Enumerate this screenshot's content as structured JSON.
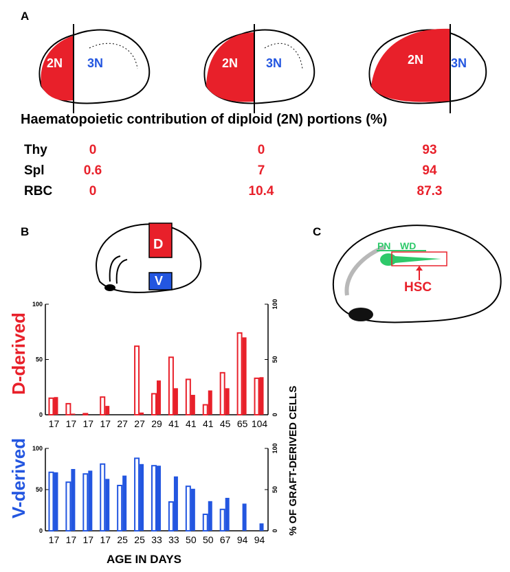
{
  "panel_a": {
    "letter": "A",
    "brains": [
      {
        "left": "2N",
        "right": "3N"
      },
      {
        "left": "2N",
        "right": "3N"
      },
      {
        "left": "2N",
        "right": "3N"
      }
    ],
    "title": "Haematopoietic contribution of diploid (2N) portions (%)",
    "rows": [
      {
        "label": "Thy",
        "values": [
          "0",
          "0",
          "93"
        ]
      },
      {
        "label": "Spl",
        "values": [
          "0.6",
          "7",
          "94"
        ]
      },
      {
        "label": "RBC",
        "values": [
          "0",
          "10.4",
          "87.3"
        ]
      }
    ]
  },
  "panel_b": {
    "letter": "B",
    "dorsal": "D",
    "ventral": "V"
  },
  "panel_c": {
    "letter": "C",
    "pn": "PN",
    "wd": "WD",
    "hsc": "HSC"
  },
  "colors": {
    "red": "#e8202a",
    "blue": "#2356e0",
    "green": "#2ec96a"
  },
  "chart_data": [
    {
      "type": "bar",
      "title": "D-derived",
      "ylabel_right": "% OF GRAFT-DERIVED CELLS",
      "ylim": [
        0,
        100
      ],
      "yticks": [
        "0",
        "50",
        "100"
      ],
      "categories": [
        "17",
        "17",
        "17",
        "17",
        "27",
        "27",
        "29",
        "41",
        "41",
        "41",
        "45",
        "65",
        "104"
      ],
      "series": [
        {
          "name": "open",
          "values": [
            15,
            10,
            1,
            16,
            0,
            62,
            19,
            52,
            32,
            9,
            38,
            74,
            33
          ]
        },
        {
          "name": "filled",
          "values": [
            16,
            1,
            0,
            8,
            0,
            2,
            31,
            24,
            18,
            22,
            24,
            70,
            34
          ]
        }
      ]
    },
    {
      "type": "bar",
      "title": "V-derived",
      "xlabel": "AGE IN DAYS",
      "ylim": [
        0,
        100
      ],
      "yticks": [
        "0",
        "50",
        "100"
      ],
      "categories": [
        "17",
        "17",
        "17",
        "17",
        "25",
        "25",
        "33",
        "33",
        "50",
        "50",
        "67",
        "94",
        "94"
      ],
      "series": [
        {
          "name": "open",
          "values": [
            71,
            59,
            69,
            81,
            55,
            88,
            79,
            35,
            54,
            20,
            26,
            0,
            0
          ]
        },
        {
          "name": "filled",
          "values": [
            71,
            75,
            73,
            63,
            67,
            81,
            79,
            66,
            51,
            36,
            40,
            33,
            9
          ]
        }
      ]
    }
  ]
}
